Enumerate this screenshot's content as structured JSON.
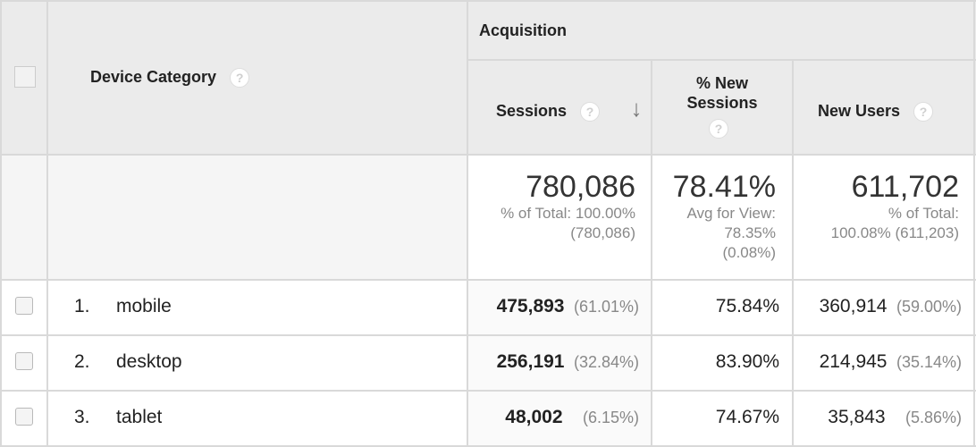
{
  "header": {
    "group_label": "Acquisition",
    "dimension_label": "Device Category",
    "columns": {
      "sessions": "Sessions",
      "pct_new_sessions_line1": "% New",
      "pct_new_sessions_line2": "Sessions",
      "new_users": "New Users"
    },
    "help_glyph": "?",
    "sort_arrow": "↓"
  },
  "totals": {
    "sessions": {
      "value": "780,086",
      "sub1": "% of Total: 100.00%",
      "sub2": "(780,086)"
    },
    "pct_new_sessions": {
      "value": "78.41%",
      "sub1": "Avg for View:",
      "sub2": "78.35%",
      "sub3": "(0.08%)"
    },
    "new_users": {
      "value": "611,702",
      "sub1": "% of Total:",
      "sub2": "100.08% (611,203)"
    }
  },
  "rows": [
    {
      "index": "1.",
      "device": "mobile",
      "sessions": "475,893",
      "sessions_pct": "(61.01%)",
      "pct_new_sessions": "75.84%",
      "new_users": "360,914",
      "new_users_pct": "(59.00%)"
    },
    {
      "index": "2.",
      "device": "desktop",
      "sessions": "256,191",
      "sessions_pct": "(32.84%)",
      "pct_new_sessions": "83.90%",
      "new_users": "214,945",
      "new_users_pct": "(35.14%)"
    },
    {
      "index": "3.",
      "device": "tablet",
      "sessions": "48,002",
      "sessions_pct": "(6.15%)",
      "pct_new_sessions": "74.67%",
      "new_users": "35,843",
      "new_users_pct": "(5.86%)"
    }
  ],
  "icons": {
    "help": "help-icon",
    "sort": "arrow-down-icon",
    "checkbox": "checkbox-icon"
  }
}
